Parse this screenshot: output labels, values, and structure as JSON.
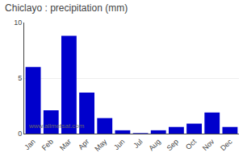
{
  "chart_data": {
    "type": "bar",
    "title": "Chiclayo : precipitation (mm)",
    "categories": [
      "Jan",
      "Feb",
      "Mar",
      "Apr",
      "May",
      "Jun",
      "Jul",
      "Aug",
      "Sep",
      "Oct",
      "Nov",
      "Dec"
    ],
    "values": [
      6.0,
      2.1,
      8.8,
      3.7,
      1.4,
      0.3,
      0.05,
      0.3,
      0.6,
      0.9,
      1.9,
      0.6
    ],
    "color": "#0000cc",
    "ylim": [
      0,
      10
    ],
    "yticks": [
      0,
      5,
      10
    ],
    "grid": true,
    "annotations": [
      "www.allmetsat.com"
    ]
  }
}
